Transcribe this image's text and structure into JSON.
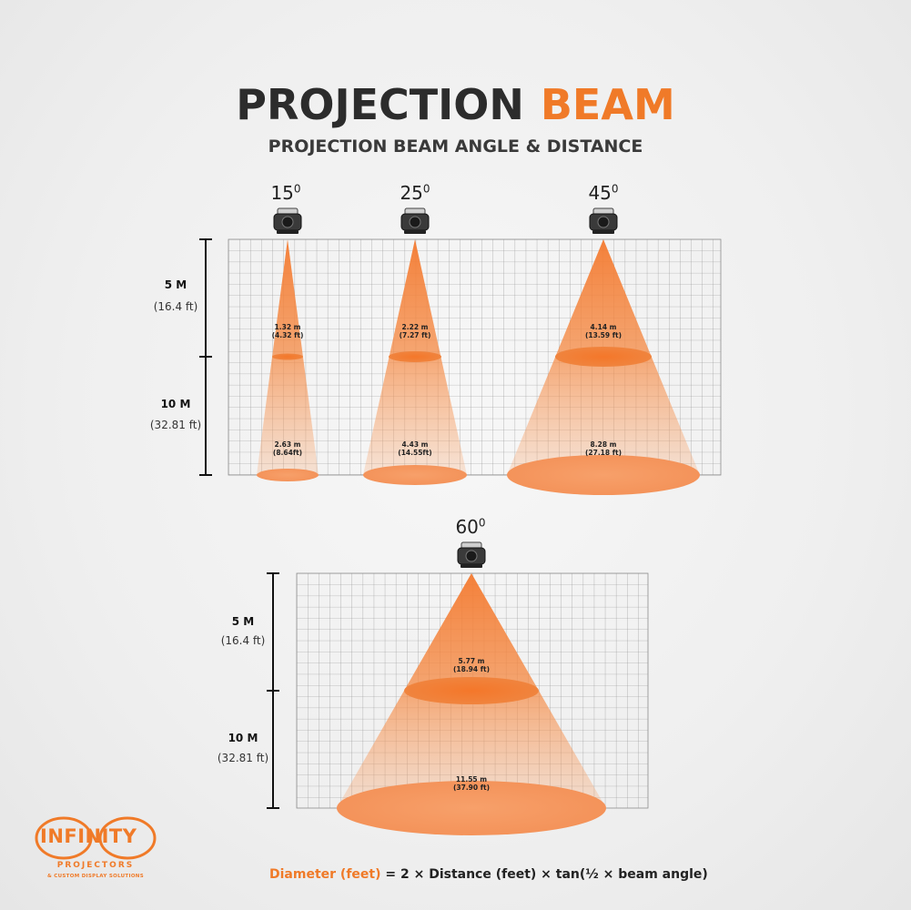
{
  "header": {
    "title_main": "PROJECTION",
    "title_accent": "BEAM",
    "subtitle": "PROJECTION BEAM ANGLE & DISTANCE"
  },
  "distances": {
    "near_label": "5 M",
    "near_feet": "(16.4 ft)",
    "far_label": "10 M",
    "far_feet": "(32.81 ft)"
  },
  "beams": [
    {
      "angle": "15",
      "degree_mark": "0",
      "near_m": "1.32 m",
      "near_ft": "(4.32 ft)",
      "far_m": "2.63 m",
      "far_ft": "(8.64ft)"
    },
    {
      "angle": "25",
      "degree_mark": "0",
      "near_m": "2.22 m",
      "near_ft": "(7.27 ft)",
      "far_m": "4.43 m",
      "far_ft": "(14.55ft)"
    },
    {
      "angle": "45",
      "degree_mark": "0",
      "near_m": "4.14 m",
      "near_ft": "(13.59 ft)",
      "far_m": "8.28 m",
      "far_ft": "(27.18 ft)"
    },
    {
      "angle": "60",
      "degree_mark": "0",
      "near_m": "5.77 m",
      "near_ft": "(18.94 ft)",
      "far_m": "11.55 m",
      "far_ft": "(37.90 ft)"
    }
  ],
  "formula": {
    "lhs": "Diameter (feet)",
    "rhs": " = 2 × Distance (feet) × tan(½ × beam angle)"
  },
  "logo": {
    "word": "INFINITY",
    "line1": "PROJECTORS",
    "line2": "& CUSTOM DISPLAY SOLUTIONS"
  },
  "colors": {
    "accent": "#f07a28",
    "beam": "#f58a44",
    "grid": "#8d8d8d",
    "text": "#2c2c2c"
  },
  "icons": {
    "projector": "projector-icon"
  }
}
